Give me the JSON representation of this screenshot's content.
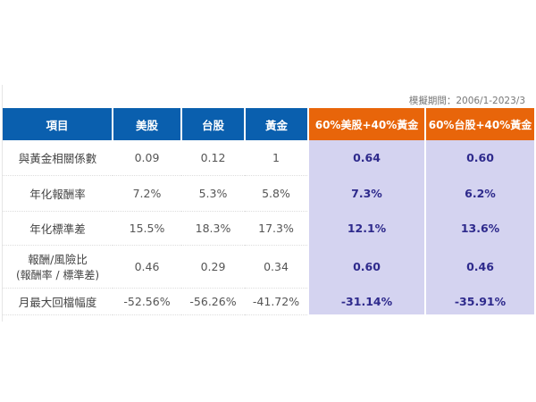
{
  "note": "模擬期間：2006/1-2023/3",
  "headers": [
    "項目",
    "美股",
    "台股",
    "黃金",
    "60%美股+40%黃金",
    "60%台股+40%黃金"
  ],
  "rows": [
    {
      "label": "與黃金相關係數",
      "values": [
        "0.09",
        "0.12",
        "1",
        "0.64",
        "0.60"
      ]
    },
    {
      "label": "年化報酬率",
      "values": [
        "7.2%",
        "5.3%",
        "5.8%",
        "7.3%",
        "6.2%"
      ]
    },
    {
      "label": "年化標準差",
      "values": [
        "15.5%",
        "18.3%",
        "17.3%",
        "12.1%",
        "13.6%"
      ]
    },
    {
      "label": "報酬/風險比",
      "sublabel": "(報酬率 / 標準差)",
      "values": [
        "0.46",
        "0.29",
        "0.34",
        "0.60",
        "0.46"
      ]
    },
    {
      "label": "月最大回檔幅度",
      "values": [
        "-52.56%",
        "-56.26%",
        "-41.72%",
        "-31.14%",
        "-35.91%"
      ]
    }
  ],
  "colors": {
    "header_blue": "#0a5fae",
    "header_orange": "#e8650a",
    "highlight": "#d4d3f0",
    "highlight_text": "#2e2a8c"
  }
}
